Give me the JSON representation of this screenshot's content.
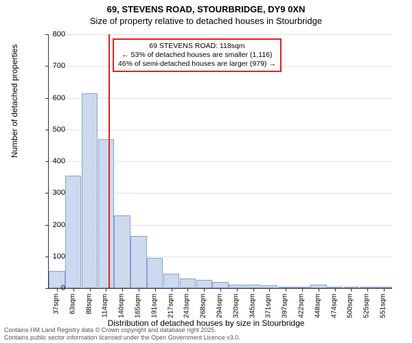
{
  "title": "69, STEVENS ROAD, STOURBRIDGE, DY9 0XN",
  "subtitle": "Size of property relative to detached houses in Stourbridge",
  "chart": {
    "type": "histogram",
    "ylabel": "Number of detached properties",
    "xlabel": "Distribution of detached houses by size in Stourbridge",
    "ylim": [
      0,
      800
    ],
    "ytick_step": 100,
    "bar_fill": "#cdd9ee",
    "bar_border": "#8aa0c8",
    "grid_color": "#e0e0e0",
    "background": "#ffffff",
    "categories": [
      "37sqm",
      "63sqm",
      "88sqm",
      "114sqm",
      "140sqm",
      "165sqm",
      "191sqm",
      "217sqm",
      "243sqm",
      "268sqm",
      "294sqm",
      "320sqm",
      "345sqm",
      "371sqm",
      "397sqm",
      "422sqm",
      "448sqm",
      "474sqm",
      "500sqm",
      "525sqm",
      "551sqm"
    ],
    "values": [
      55,
      355,
      615,
      470,
      230,
      165,
      95,
      45,
      30,
      25,
      20,
      10,
      10,
      8,
      5,
      5,
      10,
      3,
      2,
      3,
      2
    ],
    "marker": {
      "position_index": 3.15,
      "color": "#d22",
      "box": {
        "line1": "69 STEVENS ROAD: 118sqm",
        "line2": "← 53% of detached houses are smaller (1,116)",
        "line3": "46% of semi-detached houses are larger (979) →"
      }
    }
  },
  "footer": {
    "line1": "Contains HM Land Registry data © Crown copyright and database right 2025.",
    "line2": "Contains public sector information licensed under the Open Government Licence v3.0."
  }
}
